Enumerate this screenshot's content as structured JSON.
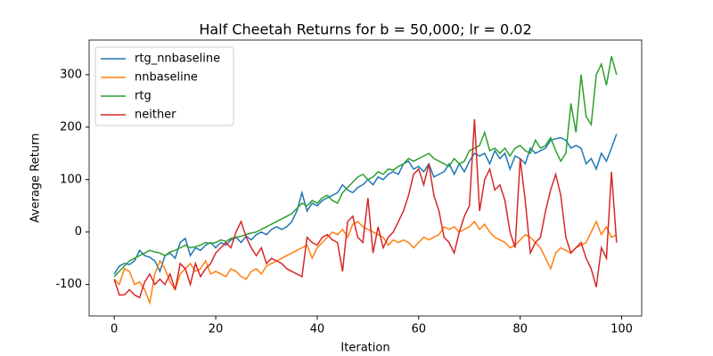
{
  "chart_data": {
    "type": "line",
    "title": "Half Cheetah Returns for b = 50,000; lr = 0.02",
    "x_label": "Iteration",
    "y_label": "Average Return",
    "x": [
      0,
      1,
      2,
      3,
      4,
      5,
      6,
      7,
      8,
      9,
      10,
      11,
      12,
      13,
      14,
      15,
      16,
      17,
      18,
      19,
      20,
      21,
      22,
      23,
      24,
      25,
      26,
      27,
      28,
      29,
      30,
      31,
      32,
      33,
      34,
      35,
      36,
      37,
      38,
      39,
      40,
      41,
      42,
      43,
      44,
      45,
      46,
      47,
      48,
      49,
      50,
      51,
      52,
      53,
      54,
      55,
      56,
      57,
      58,
      59,
      60,
      61,
      62,
      63,
      64,
      65,
      66,
      67,
      68,
      69,
      70,
      71,
      72,
      73,
      74,
      75,
      76,
      77,
      78,
      79,
      80,
      81,
      82,
      83,
      84,
      85,
      86,
      87,
      88,
      89,
      90,
      91,
      92,
      93,
      94,
      95,
      96,
      97,
      98,
      99
    ],
    "series": [
      {
        "name": "rtg_nnbaseline",
        "color": "#1f77b4",
        "values": [
          -80,
          -65,
          -60,
          -62,
          -55,
          -35,
          -45,
          -48,
          -55,
          -75,
          -45,
          -40,
          -50,
          -20,
          -12,
          -45,
          -30,
          -35,
          -25,
          -20,
          -30,
          -20,
          -25,
          -15,
          -10,
          -20,
          -8,
          -15,
          -5,
          0,
          -5,
          5,
          10,
          5,
          10,
          20,
          40,
          75,
          40,
          55,
          50,
          60,
          65,
          70,
          75,
          90,
          80,
          75,
          85,
          90,
          100,
          90,
          105,
          100,
          110,
          115,
          110,
          130,
          135,
          120,
          125,
          115,
          130,
          105,
          110,
          115,
          130,
          110,
          130,
          115,
          135,
          150,
          145,
          150,
          130,
          155,
          140,
          150,
          120,
          145,
          140,
          130,
          160,
          150,
          155,
          160,
          175,
          178,
          180,
          175,
          160,
          165,
          160,
          130,
          140,
          120,
          150,
          135,
          160,
          187
        ]
      },
      {
        "name": "nnbaseline",
        "color": "#ff7f0e",
        "values": [
          -90,
          -100,
          -70,
          -75,
          -100,
          -95,
          -110,
          -135,
          -80,
          -55,
          -70,
          -95,
          -110,
          -80,
          -70,
          -60,
          -75,
          -70,
          -55,
          -80,
          -75,
          -80,
          -85,
          -70,
          -75,
          -85,
          -90,
          -75,
          -70,
          -80,
          -65,
          -60,
          -55,
          -50,
          -45,
          -40,
          -35,
          -30,
          -25,
          -50,
          -30,
          -20,
          -10,
          0,
          -5,
          5,
          -10,
          15,
          20,
          10,
          5,
          0,
          -5,
          -10,
          -25,
          -15,
          -20,
          -15,
          -20,
          -30,
          -20,
          -10,
          -15,
          -10,
          -5,
          10,
          5,
          10,
          0,
          5,
          10,
          20,
          5,
          15,
          0,
          -10,
          -15,
          -20,
          -30,
          -25,
          -15,
          -5,
          -10,
          -20,
          -30,
          -50,
          -70,
          -40,
          -30,
          -35,
          -40,
          -30,
          -25,
          -20,
          0,
          20,
          -5,
          10,
          -10,
          -5
        ]
      },
      {
        "name": "rtg",
        "color": "#2ca02c",
        "values": [
          -85,
          -75,
          -65,
          -55,
          -50,
          -45,
          -40,
          -35,
          -38,
          -40,
          -45,
          -38,
          -35,
          -30,
          -25,
          -30,
          -28,
          -25,
          -20,
          -22,
          -20,
          -15,
          -18,
          -12,
          -10,
          -8,
          -5,
          -2,
          0,
          5,
          10,
          15,
          20,
          25,
          30,
          35,
          45,
          55,
          50,
          60,
          55,
          65,
          70,
          60,
          55,
          75,
          85,
          95,
          105,
          110,
          100,
          105,
          115,
          110,
          120,
          118,
          125,
          130,
          140,
          135,
          140,
          145,
          150,
          140,
          135,
          130,
          125,
          140,
          130,
          135,
          155,
          160,
          165,
          190,
          155,
          160,
          150,
          160,
          145,
          160,
          165,
          155,
          150,
          175,
          160,
          165,
          180,
          155,
          135,
          150,
          245,
          190,
          300,
          220,
          205,
          300,
          320,
          280,
          335,
          300
        ]
      },
      {
        "name": "neither",
        "color": "#d62728",
        "values": [
          -90,
          -120,
          -120,
          -110,
          -120,
          -125,
          -95,
          -80,
          -100,
          -90,
          -100,
          -80,
          -110,
          -60,
          -70,
          -100,
          -60,
          -85,
          -70,
          -60,
          -40,
          -30,
          -20,
          -30,
          0,
          20,
          -10,
          -30,
          -45,
          -30,
          -60,
          -50,
          -55,
          -60,
          -70,
          -75,
          -80,
          -85,
          -10,
          -20,
          -25,
          -10,
          -5,
          -15,
          -20,
          -75,
          20,
          30,
          -10,
          -20,
          65,
          -40,
          10,
          -30,
          -10,
          0,
          20,
          40,
          70,
          110,
          120,
          90,
          130,
          70,
          40,
          -10,
          -20,
          -40,
          0,
          30,
          50,
          215,
          40,
          100,
          120,
          80,
          90,
          60,
          0,
          -30,
          140,
          60,
          -40,
          -20,
          -10,
          40,
          80,
          110,
          70,
          -10,
          -40,
          -30,
          -20,
          -50,
          -70,
          -105,
          -30,
          -50,
          115,
          -20
        ]
      }
    ],
    "xlim": [
      -4.95,
      103.95
    ],
    "ylim": [
      -160,
      366
    ],
    "xticks": [
      0,
      20,
      40,
      60,
      80,
      100
    ],
    "yticks": [
      -100,
      0,
      100,
      200,
      300
    ],
    "legend": "upper left"
  }
}
